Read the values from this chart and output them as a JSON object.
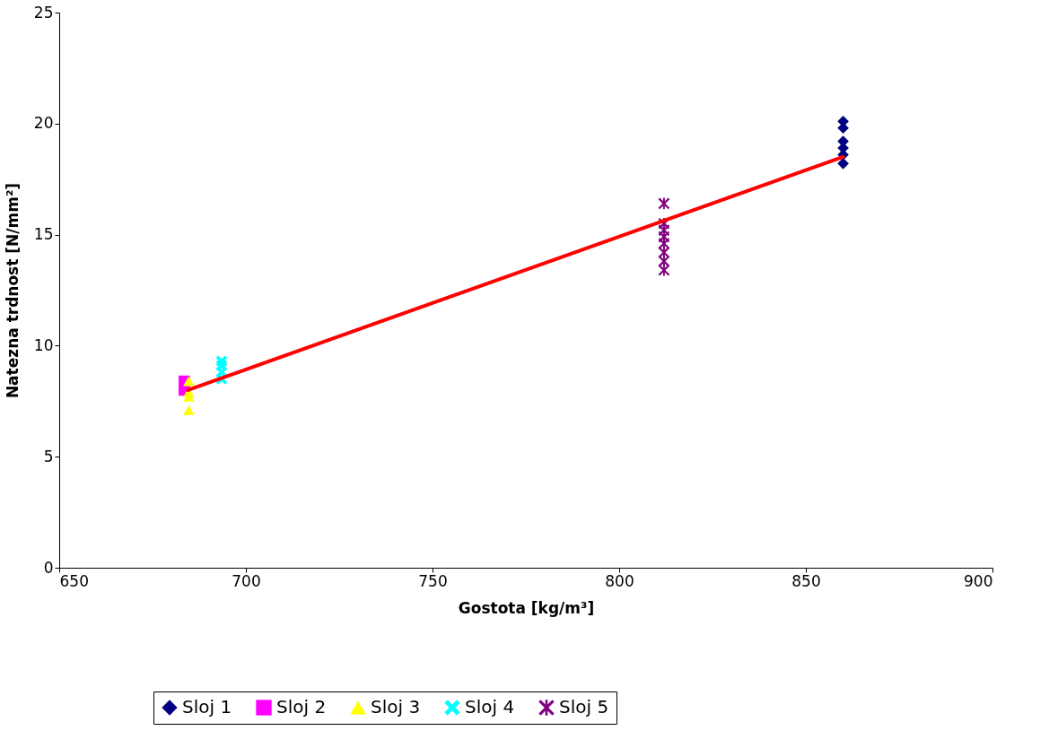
{
  "chart_data": {
    "type": "scatter",
    "xlabel": "Gostota [kg/m³]",
    "ylabel": "Natezna trdnost [N/mm²]",
    "xlim": [
      650,
      900
    ],
    "xticks": [
      650,
      700,
      750,
      800,
      850,
      900
    ],
    "ylim": [
      0,
      25
    ],
    "yticks": [
      0,
      5,
      10,
      15,
      20,
      25
    ],
    "grid": false,
    "legend": "bottom",
    "series": [
      {
        "name": "Sloj 1",
        "color": "#000080",
        "marker": "diamond",
        "x": [
          860,
          860,
          860,
          860,
          860,
          860
        ],
        "values": [
          20.1,
          19.8,
          19.2,
          18.9,
          18.6,
          18.2
        ]
      },
      {
        "name": "Sloj 2",
        "color": "#ff00ff",
        "marker": "square",
        "x": [
          683.5,
          683.5
        ],
        "values": [
          8.4,
          8.0
        ]
      },
      {
        "name": "Sloj 3",
        "color": "#ffff00",
        "marker": "triangle",
        "x": [
          684.7,
          684.7,
          684.7,
          684.7
        ],
        "values": [
          8.4,
          7.9,
          7.7,
          7.1
        ]
      },
      {
        "name": "Sloj 4",
        "color": "#00ffff",
        "marker": "cross",
        "x": [
          693.5,
          693.5,
          693.5,
          693.5
        ],
        "values": [
          9.3,
          9.1,
          8.8,
          8.5
        ]
      },
      {
        "name": "Sloj 5",
        "color": "#800080",
        "marker": "star",
        "x": [
          812,
          812,
          812,
          812,
          812,
          812,
          812,
          812
        ],
        "values": [
          16.4,
          15.5,
          15.2,
          14.9,
          14.6,
          14.2,
          13.8,
          13.4
        ]
      },
      {
        "type": "line",
        "color": "#ff0000",
        "x": [
          684.5,
          860
        ],
        "values": [
          8.0,
          18.5
        ]
      }
    ]
  }
}
